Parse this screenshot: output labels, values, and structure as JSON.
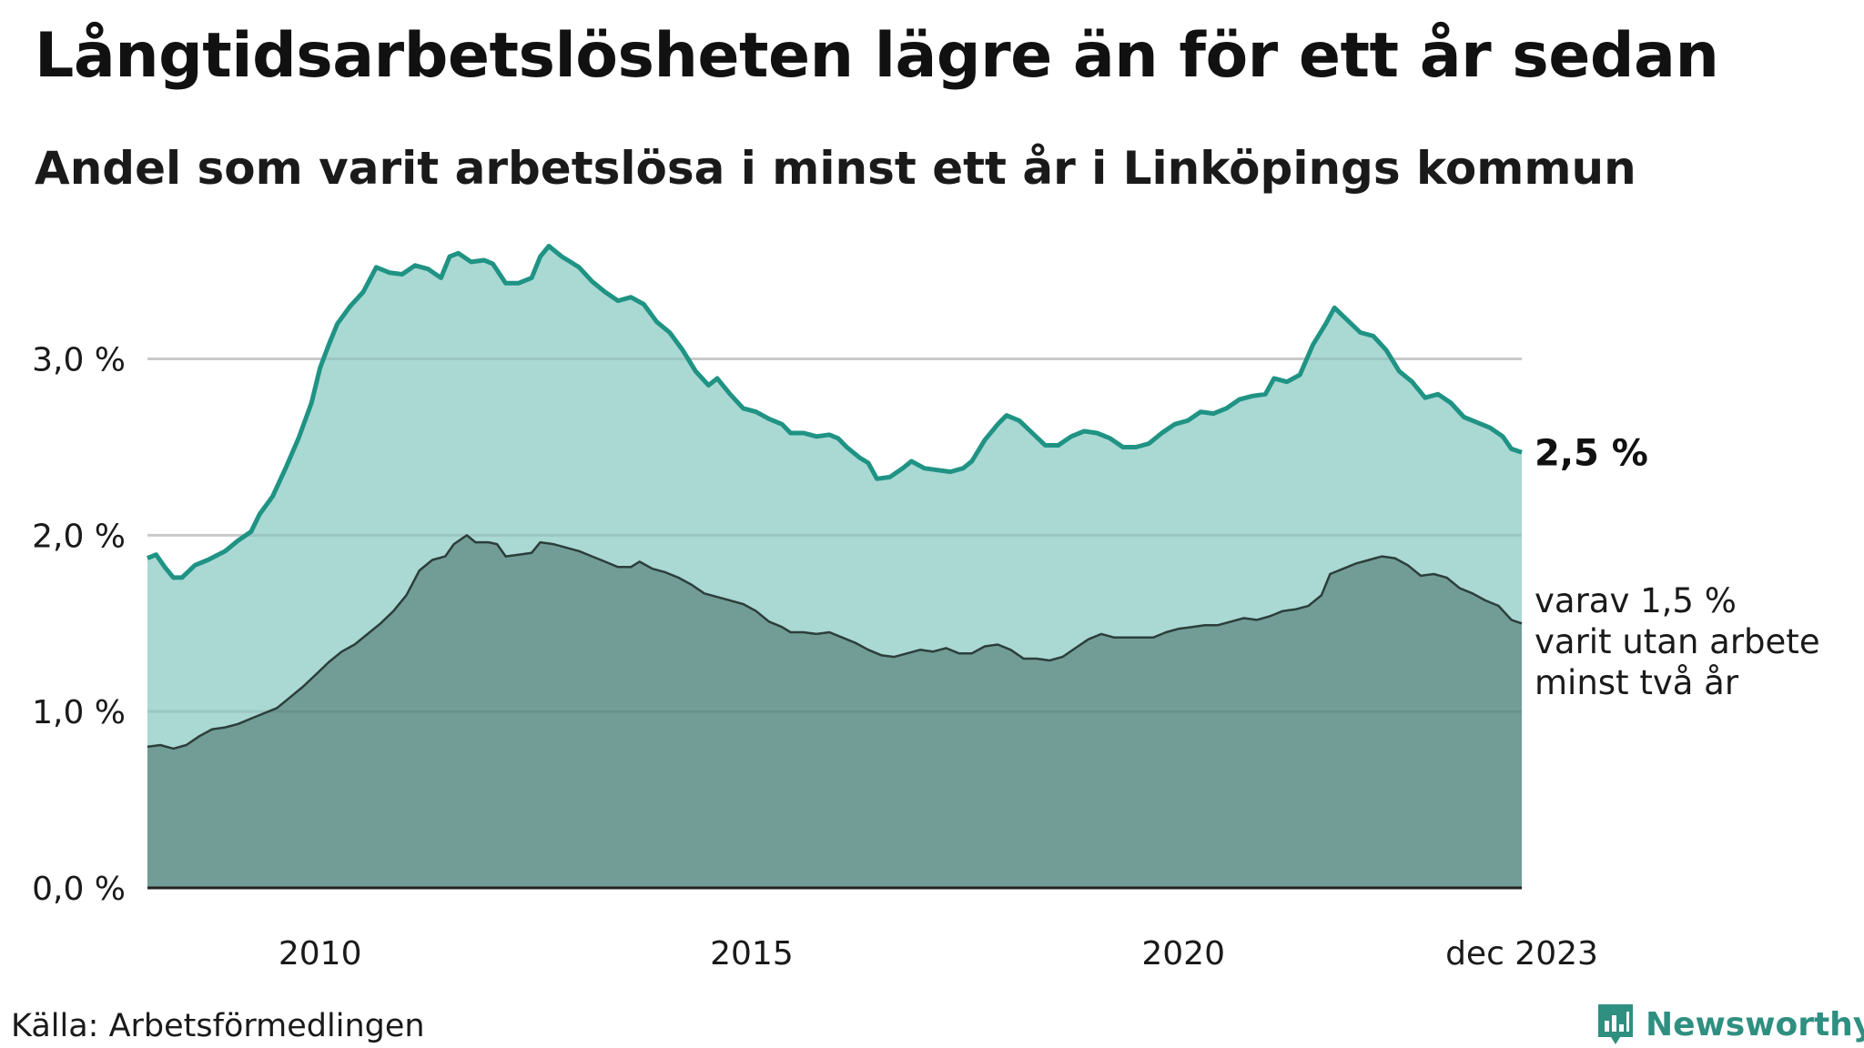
{
  "title": "Långtidsarbetslösheten lägre än för ett år sedan",
  "subtitle": "Andel som varit arbetslösa i minst ett år i Linköpings kommun",
  "source": "Källa: Arbetsförmedlingen",
  "brand": {
    "name": "Newsworthy",
    "icon": "newsworthy-logo-icon",
    "color": "#2f8f80"
  },
  "colors": {
    "upper_fill": "#a3d5cf",
    "upper_line": "#1f9384",
    "lower_fill": "#729d97",
    "lower_line": "#2c3e3b",
    "grid": "#d9d9d9",
    "axis": "#222222"
  },
  "chart_data": {
    "type": "area",
    "title": "Långtidsarbetslösheten lägre än för ett år sedan",
    "xlabel": "",
    "ylabel": "",
    "x_range": [
      2008.0,
      2023.92
    ],
    "ylim": [
      0,
      3.7
    ],
    "grid": true,
    "y_ticks": [
      {
        "value": 0,
        "label": "0,0 %"
      },
      {
        "value": 1,
        "label": "1,0 %"
      },
      {
        "value": 2,
        "label": "2,0 %"
      },
      {
        "value": 3,
        "label": "3,0 %"
      }
    ],
    "x_ticks": [
      {
        "value": 2010,
        "label": "2010"
      },
      {
        "value": 2015,
        "label": "2015"
      },
      {
        "value": 2020,
        "label": "2020"
      },
      {
        "value": 2023.92,
        "label": "dec 2023"
      }
    ],
    "series": [
      {
        "name": "Minst ett år",
        "end_label": "2,5 %",
        "points": [
          [
            2008.0,
            1.87
          ],
          [
            2008.1,
            1.89
          ],
          [
            2008.2,
            1.82
          ],
          [
            2008.3,
            1.76
          ],
          [
            2008.4,
            1.76
          ],
          [
            2008.55,
            1.83
          ],
          [
            2008.7,
            1.86
          ],
          [
            2008.9,
            1.91
          ],
          [
            2009.05,
            1.97
          ],
          [
            2009.2,
            2.02
          ],
          [
            2009.3,
            2.12
          ],
          [
            2009.45,
            2.22
          ],
          [
            2009.6,
            2.38
          ],
          [
            2009.75,
            2.55
          ],
          [
            2009.9,
            2.75
          ],
          [
            2010.0,
            2.95
          ],
          [
            2010.1,
            3.08
          ],
          [
            2010.2,
            3.2
          ],
          [
            2010.35,
            3.3
          ],
          [
            2010.5,
            3.38
          ],
          [
            2010.65,
            3.52
          ],
          [
            2010.8,
            3.49
          ],
          [
            2010.95,
            3.48
          ],
          [
            2011.1,
            3.53
          ],
          [
            2011.25,
            3.51
          ],
          [
            2011.4,
            3.46
          ],
          [
            2011.5,
            3.58
          ],
          [
            2011.6,
            3.6
          ],
          [
            2011.75,
            3.55
          ],
          [
            2011.9,
            3.56
          ],
          [
            2012.0,
            3.54
          ],
          [
            2012.15,
            3.43
          ],
          [
            2012.3,
            3.43
          ],
          [
            2012.45,
            3.46
          ],
          [
            2012.55,
            3.58
          ],
          [
            2012.65,
            3.64
          ],
          [
            2012.8,
            3.58
          ],
          [
            2012.9,
            3.55
          ],
          [
            2013.0,
            3.52
          ],
          [
            2013.15,
            3.44
          ],
          [
            2013.3,
            3.38
          ],
          [
            2013.45,
            3.33
          ],
          [
            2013.6,
            3.35
          ],
          [
            2013.75,
            3.31
          ],
          [
            2013.9,
            3.21
          ],
          [
            2014.05,
            3.15
          ],
          [
            2014.2,
            3.05
          ],
          [
            2014.35,
            2.93
          ],
          [
            2014.5,
            2.85
          ],
          [
            2014.6,
            2.89
          ],
          [
            2014.75,
            2.8
          ],
          [
            2014.9,
            2.72
          ],
          [
            2015.05,
            2.7
          ],
          [
            2015.2,
            2.66
          ],
          [
            2015.35,
            2.63
          ],
          [
            2015.45,
            2.58
          ],
          [
            2015.6,
            2.58
          ],
          [
            2015.75,
            2.56
          ],
          [
            2015.9,
            2.57
          ],
          [
            2016.0,
            2.55
          ],
          [
            2016.1,
            2.5
          ],
          [
            2016.25,
            2.44
          ],
          [
            2016.35,
            2.41
          ],
          [
            2016.45,
            2.32
          ],
          [
            2016.6,
            2.33
          ],
          [
            2016.75,
            2.38
          ],
          [
            2016.85,
            2.42
          ],
          [
            2017.0,
            2.38
          ],
          [
            2017.15,
            2.37
          ],
          [
            2017.3,
            2.36
          ],
          [
            2017.45,
            2.38
          ],
          [
            2017.55,
            2.42
          ],
          [
            2017.7,
            2.54
          ],
          [
            2017.85,
            2.63
          ],
          [
            2017.95,
            2.68
          ],
          [
            2018.1,
            2.65
          ],
          [
            2018.25,
            2.58
          ],
          [
            2018.4,
            2.51
          ],
          [
            2018.55,
            2.51
          ],
          [
            2018.7,
            2.56
          ],
          [
            2018.85,
            2.59
          ],
          [
            2019.0,
            2.58
          ],
          [
            2019.15,
            2.55
          ],
          [
            2019.3,
            2.5
          ],
          [
            2019.45,
            2.5
          ],
          [
            2019.6,
            2.52
          ],
          [
            2019.75,
            2.58
          ],
          [
            2019.9,
            2.63
          ],
          [
            2020.05,
            2.65
          ],
          [
            2020.2,
            2.7
          ],
          [
            2020.35,
            2.69
          ],
          [
            2020.5,
            2.72
          ],
          [
            2020.65,
            2.77
          ],
          [
            2020.8,
            2.79
          ],
          [
            2020.95,
            2.8
          ],
          [
            2021.05,
            2.89
          ],
          [
            2021.2,
            2.87
          ],
          [
            2021.35,
            2.91
          ],
          [
            2021.5,
            3.08
          ],
          [
            2021.65,
            3.2
          ],
          [
            2021.75,
            3.29
          ],
          [
            2021.9,
            3.22
          ],
          [
            2022.05,
            3.15
          ],
          [
            2022.2,
            3.13
          ],
          [
            2022.35,
            3.05
          ],
          [
            2022.5,
            2.93
          ],
          [
            2022.65,
            2.87
          ],
          [
            2022.8,
            2.78
          ],
          [
            2022.95,
            2.8
          ],
          [
            2023.1,
            2.75
          ],
          [
            2023.25,
            2.67
          ],
          [
            2023.4,
            2.64
          ],
          [
            2023.55,
            2.61
          ],
          [
            2023.7,
            2.56
          ],
          [
            2023.8,
            2.49
          ],
          [
            2023.92,
            2.47
          ]
        ]
      },
      {
        "name": "Minst två år",
        "end_label_lines": [
          "varav 1,5 %",
          "varit utan arbete",
          "minst två år"
        ],
        "points": [
          [
            2008.0,
            0.8
          ],
          [
            2008.15,
            0.81
          ],
          [
            2008.3,
            0.79
          ],
          [
            2008.45,
            0.81
          ],
          [
            2008.6,
            0.86
          ],
          [
            2008.75,
            0.9
          ],
          [
            2008.9,
            0.91
          ],
          [
            2009.05,
            0.93
          ],
          [
            2009.2,
            0.96
          ],
          [
            2009.35,
            0.99
          ],
          [
            2009.5,
            1.02
          ],
          [
            2009.65,
            1.08
          ],
          [
            2009.8,
            1.14
          ],
          [
            2009.95,
            1.21
          ],
          [
            2010.1,
            1.28
          ],
          [
            2010.25,
            1.34
          ],
          [
            2010.4,
            1.38
          ],
          [
            2010.55,
            1.44
          ],
          [
            2010.7,
            1.5
          ],
          [
            2010.85,
            1.57
          ],
          [
            2011.0,
            1.66
          ],
          [
            2011.15,
            1.8
          ],
          [
            2011.3,
            1.86
          ],
          [
            2011.45,
            1.88
          ],
          [
            2011.55,
            1.95
          ],
          [
            2011.7,
            2.0
          ],
          [
            2011.8,
            1.96
          ],
          [
            2011.95,
            1.96
          ],
          [
            2012.05,
            1.95
          ],
          [
            2012.15,
            1.88
          ],
          [
            2012.3,
            1.89
          ],
          [
            2012.45,
            1.9
          ],
          [
            2012.55,
            1.96
          ],
          [
            2012.7,
            1.95
          ],
          [
            2012.85,
            1.93
          ],
          [
            2013.0,
            1.91
          ],
          [
            2013.15,
            1.88
          ],
          [
            2013.3,
            1.85
          ],
          [
            2013.45,
            1.82
          ],
          [
            2013.6,
            1.82
          ],
          [
            2013.7,
            1.85
          ],
          [
            2013.85,
            1.81
          ],
          [
            2014.0,
            1.79
          ],
          [
            2014.15,
            1.76
          ],
          [
            2014.3,
            1.72
          ],
          [
            2014.45,
            1.67
          ],
          [
            2014.6,
            1.65
          ],
          [
            2014.75,
            1.63
          ],
          [
            2014.9,
            1.61
          ],
          [
            2015.05,
            1.57
          ],
          [
            2015.2,
            1.51
          ],
          [
            2015.35,
            1.48
          ],
          [
            2015.45,
            1.45
          ],
          [
            2015.6,
            1.45
          ],
          [
            2015.75,
            1.44
          ],
          [
            2015.9,
            1.45
          ],
          [
            2016.05,
            1.42
          ],
          [
            2016.2,
            1.39
          ],
          [
            2016.35,
            1.35
          ],
          [
            2016.5,
            1.32
          ],
          [
            2016.65,
            1.31
          ],
          [
            2016.8,
            1.33
          ],
          [
            2016.95,
            1.35
          ],
          [
            2017.1,
            1.34
          ],
          [
            2017.25,
            1.36
          ],
          [
            2017.4,
            1.33
          ],
          [
            2017.55,
            1.33
          ],
          [
            2017.7,
            1.37
          ],
          [
            2017.85,
            1.38
          ],
          [
            2018.0,
            1.35
          ],
          [
            2018.15,
            1.3
          ],
          [
            2018.3,
            1.3
          ],
          [
            2018.45,
            1.29
          ],
          [
            2018.6,
            1.31
          ],
          [
            2018.75,
            1.36
          ],
          [
            2018.9,
            1.41
          ],
          [
            2019.05,
            1.44
          ],
          [
            2019.2,
            1.42
          ],
          [
            2019.35,
            1.42
          ],
          [
            2019.5,
            1.42
          ],
          [
            2019.65,
            1.42
          ],
          [
            2019.8,
            1.45
          ],
          [
            2019.95,
            1.47
          ],
          [
            2020.1,
            1.48
          ],
          [
            2020.25,
            1.49
          ],
          [
            2020.4,
            1.49
          ],
          [
            2020.55,
            1.51
          ],
          [
            2020.7,
            1.53
          ],
          [
            2020.85,
            1.52
          ],
          [
            2021.0,
            1.54
          ],
          [
            2021.15,
            1.57
          ],
          [
            2021.3,
            1.58
          ],
          [
            2021.45,
            1.6
          ],
          [
            2021.6,
            1.66
          ],
          [
            2021.7,
            1.78
          ],
          [
            2021.85,
            1.81
          ],
          [
            2022.0,
            1.84
          ],
          [
            2022.15,
            1.86
          ],
          [
            2022.3,
            1.88
          ],
          [
            2022.45,
            1.87
          ],
          [
            2022.6,
            1.83
          ],
          [
            2022.75,
            1.77
          ],
          [
            2022.9,
            1.78
          ],
          [
            2023.05,
            1.76
          ],
          [
            2023.2,
            1.7
          ],
          [
            2023.35,
            1.67
          ],
          [
            2023.5,
            1.63
          ],
          [
            2023.65,
            1.6
          ],
          [
            2023.8,
            1.52
          ],
          [
            2023.92,
            1.5
          ]
        ]
      }
    ]
  }
}
